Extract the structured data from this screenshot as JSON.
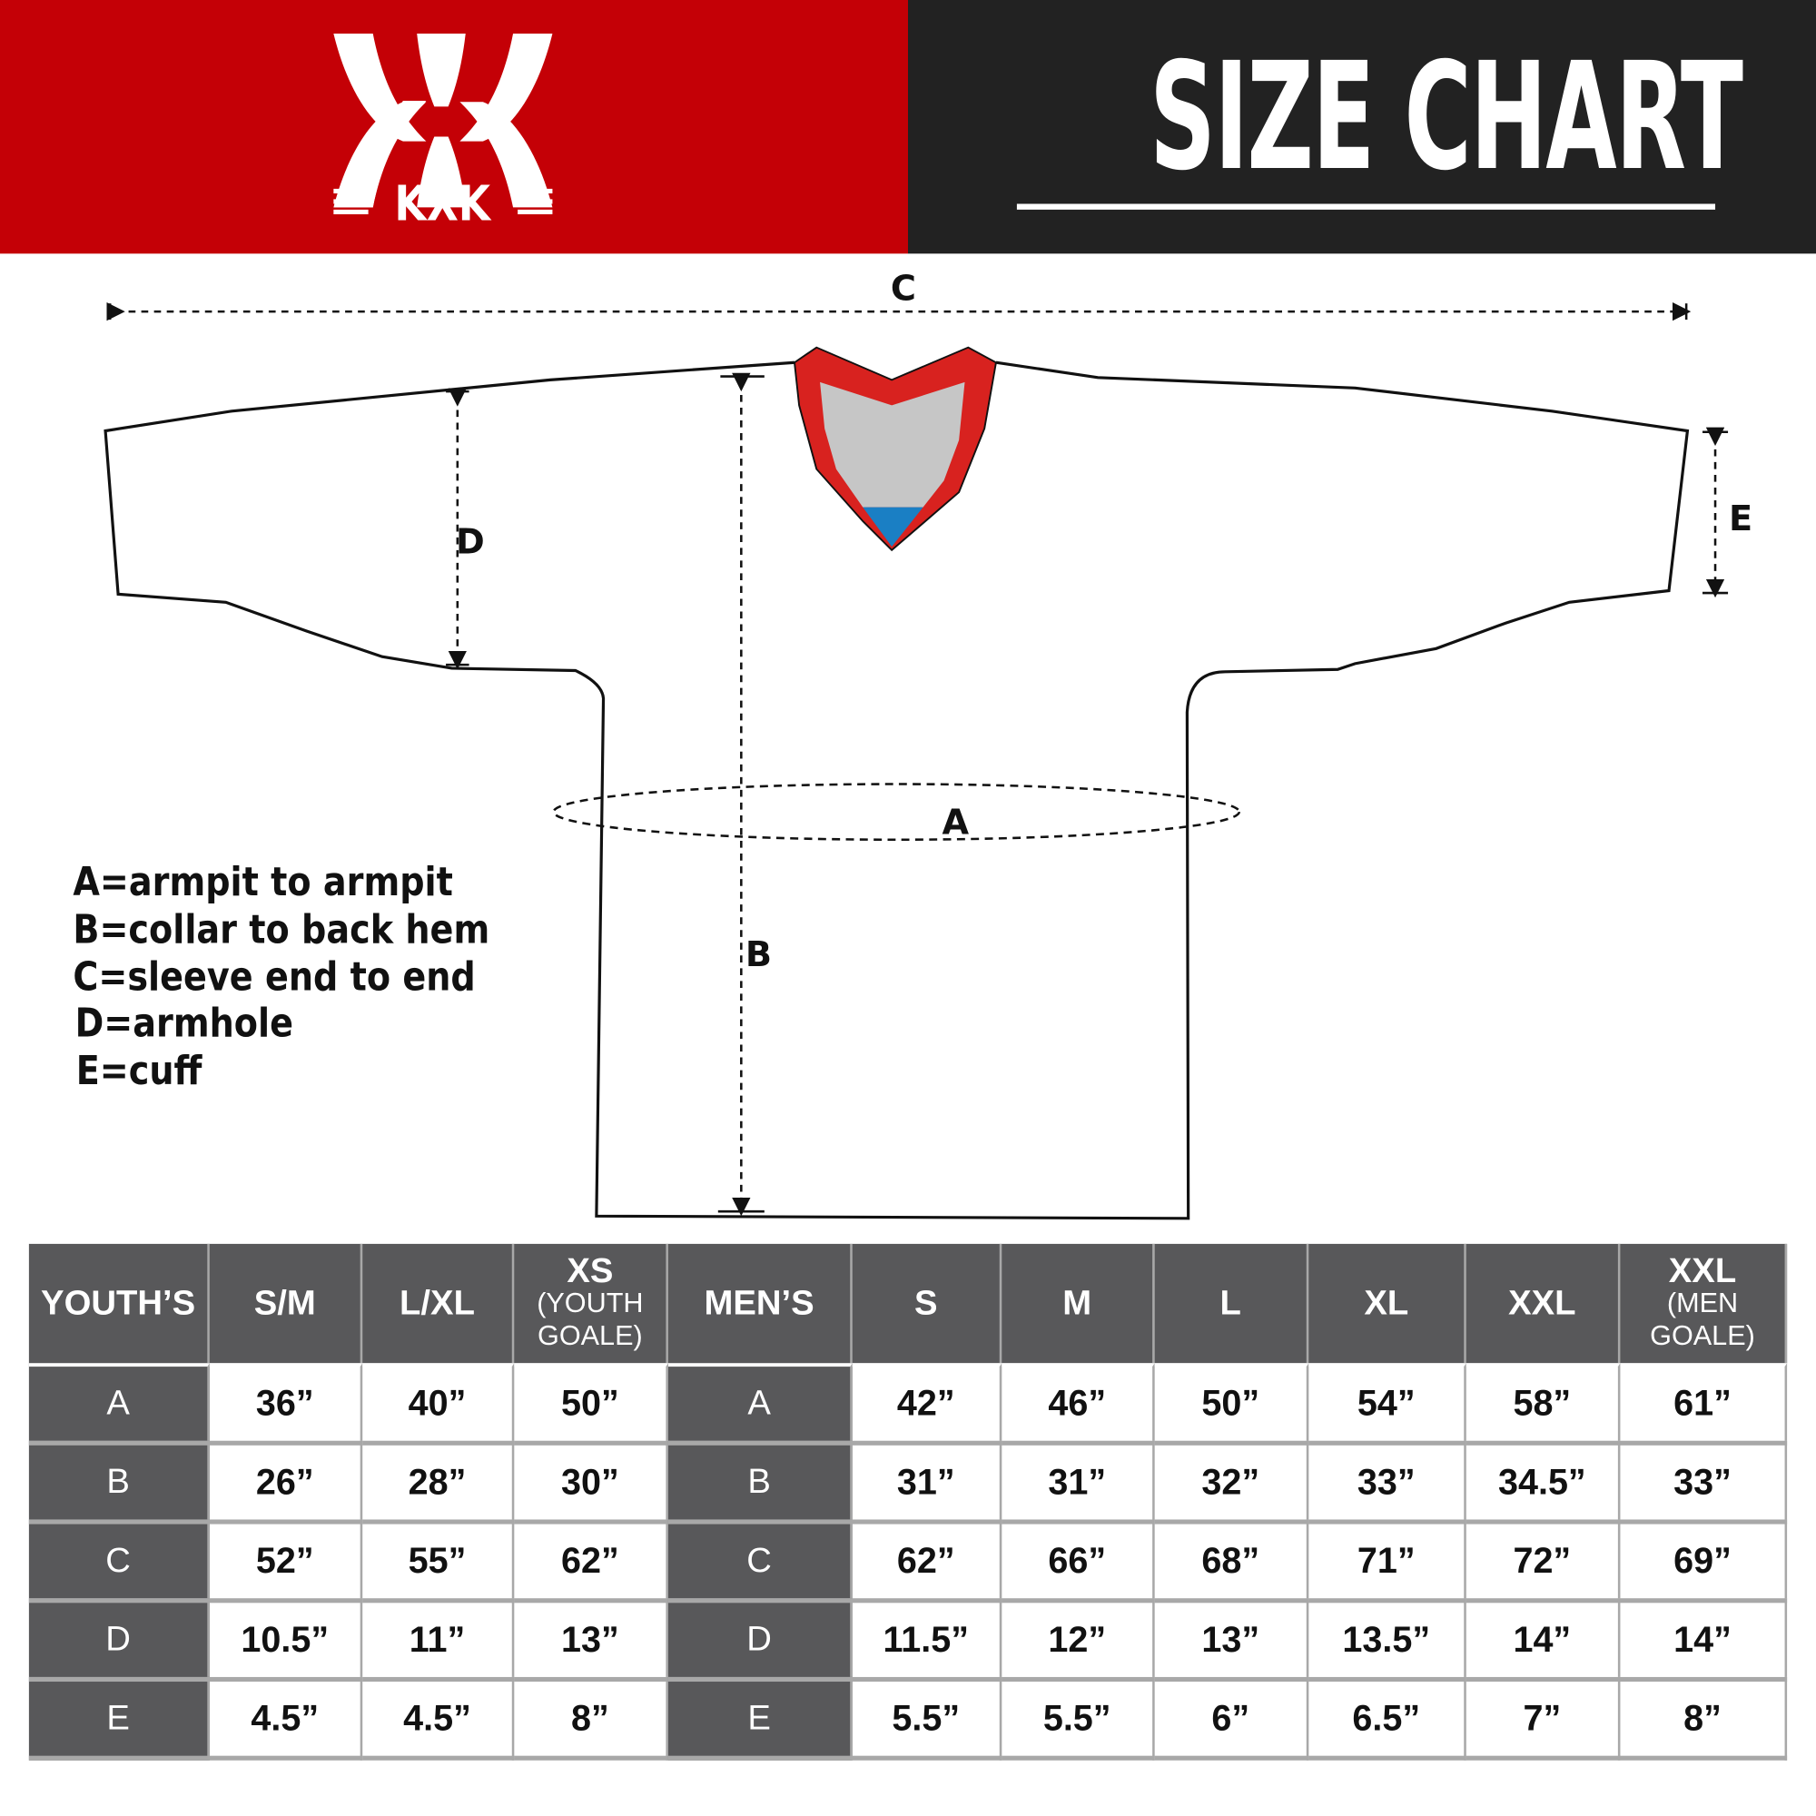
{
  "brand": {
    "logo_text": "KXK",
    "colors": {
      "red": "#c40006",
      "dark": "#222222",
      "table_header": "#58585a"
    }
  },
  "header": {
    "title": "SIZE CHART"
  },
  "diagram": {
    "labels": {
      "a": "A",
      "b": "B",
      "c": "C",
      "d": "D",
      "e": "E"
    },
    "collar_colors": {
      "trim": "#d8221f",
      "inner": "#c6c6c6",
      "accent": "#1a7fc4"
    }
  },
  "legend": [
    "A=armpit to armpit",
    "B=collar to back hem",
    "C=sleeve end to end",
    "D=armhole",
    "E=cuff"
  ],
  "table": {
    "headers": [
      {
        "main": "YOUTH’S",
        "sub": ""
      },
      {
        "main": "S/M",
        "sub": ""
      },
      {
        "main": "L/XL",
        "sub": ""
      },
      {
        "main": "XS",
        "sub": "(YOUTH GOALE)"
      },
      {
        "main": "MEN’S",
        "sub": ""
      },
      {
        "main": "S",
        "sub": ""
      },
      {
        "main": "M",
        "sub": ""
      },
      {
        "main": "L",
        "sub": ""
      },
      {
        "main": "XL",
        "sub": ""
      },
      {
        "main": "XXL",
        "sub": ""
      },
      {
        "main": "XXL",
        "sub": "(MEN GOALE)"
      }
    ],
    "rows": [
      {
        "youth_label": "A",
        "youth": [
          "36”",
          "40”",
          "50”"
        ],
        "men_label": "A",
        "men": [
          "42”",
          "46”",
          "50”",
          "54”",
          "58”",
          "61”"
        ]
      },
      {
        "youth_label": "B",
        "youth": [
          "26”",
          "28”",
          "30”"
        ],
        "men_label": "B",
        "men": [
          "31”",
          "31”",
          "32”",
          "33”",
          "34.5”",
          "33”"
        ]
      },
      {
        "youth_label": "C",
        "youth": [
          "52”",
          "55”",
          "62”"
        ],
        "men_label": "C",
        "men": [
          "62”",
          "66”",
          "68”",
          "71”",
          "72”",
          "69”"
        ]
      },
      {
        "youth_label": "D",
        "youth": [
          "10.5”",
          "11”",
          "13”"
        ],
        "men_label": "D",
        "men": [
          "11.5”",
          "12”",
          "13”",
          "13.5”",
          "14”",
          "14”"
        ]
      },
      {
        "youth_label": "E",
        "youth": [
          "4.5”",
          "4.5”",
          "8”"
        ],
        "men_label": "E",
        "men": [
          "5.5”",
          "5.5”",
          "6”",
          "6.5”",
          "7”",
          "8”"
        ]
      }
    ]
  }
}
